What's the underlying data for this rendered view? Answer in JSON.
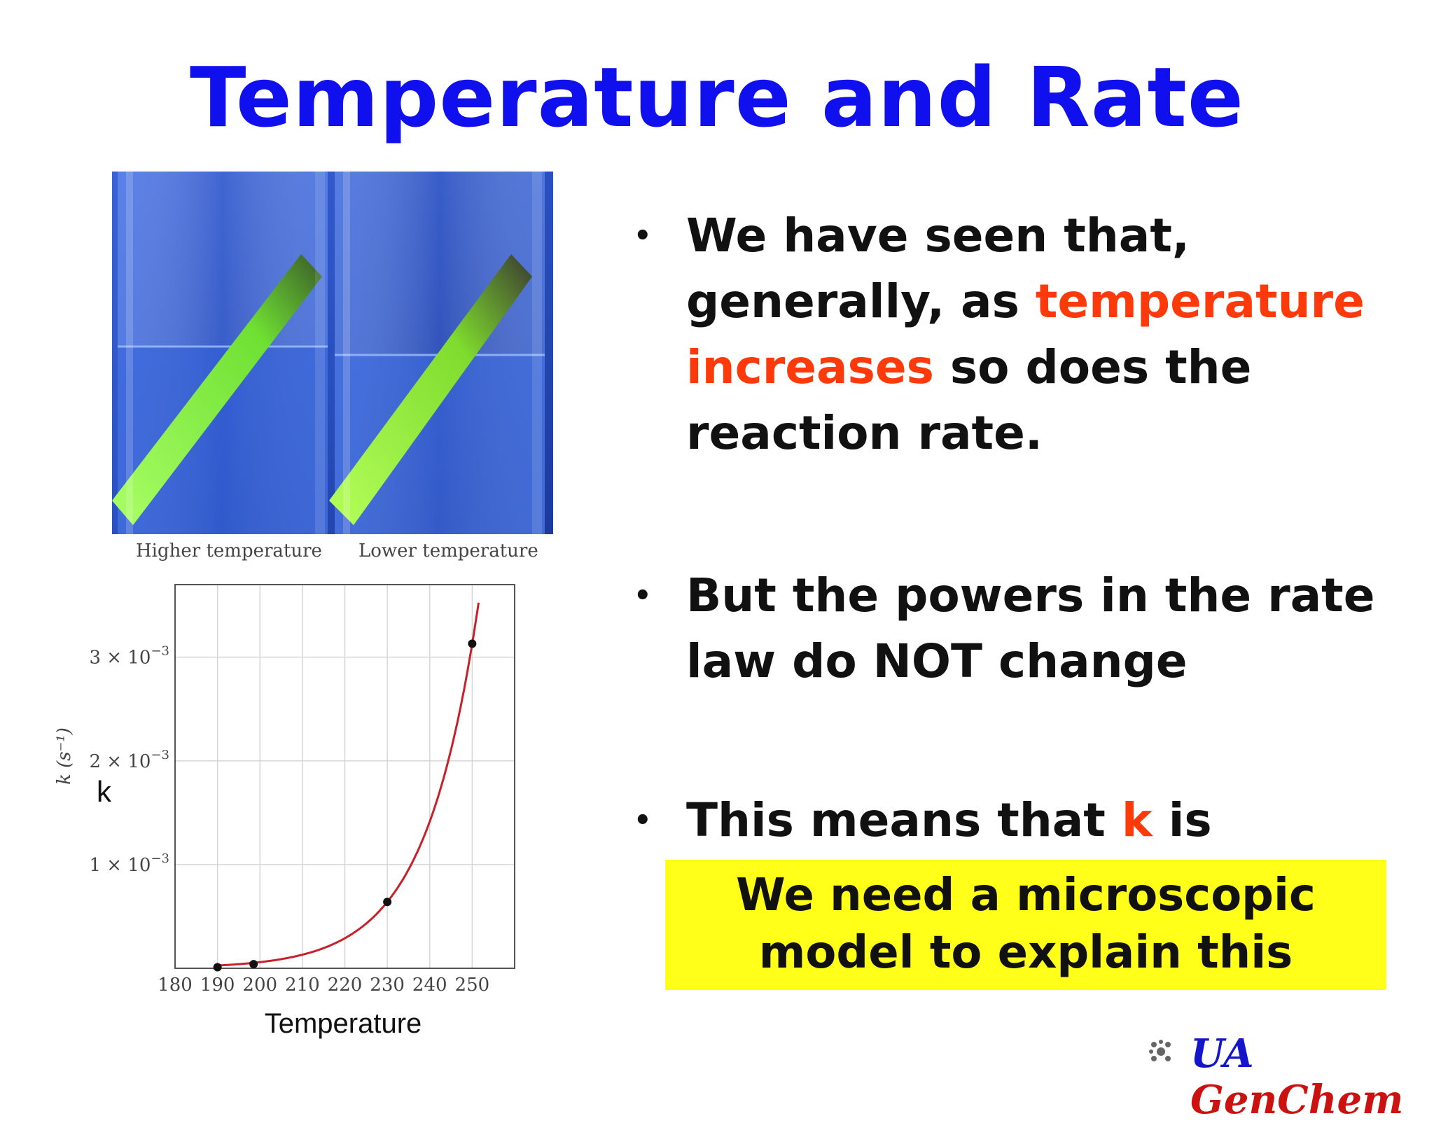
{
  "slide": {
    "title": "Temperature and Rate",
    "photo": {
      "caption_left": "Higher temperature",
      "caption_right": "Lower temperature"
    },
    "bullets": [
      {
        "parts": [
          "We have seen that, generally, as ",
          "temperature increases",
          " so does the reaction rate."
        ]
      },
      {
        "parts": [
          "But the powers in the rate law do NOT change"
        ]
      },
      {
        "parts": [
          "This means that ",
          "k",
          " is"
        ]
      }
    ],
    "bullet_symbol": "•",
    "callout": "We need a microscopic model to explain this",
    "brand": {
      "ua": "UA",
      "genchem": "GenChem"
    }
  },
  "chart_data": {
    "type": "line",
    "xlabel": "Temperature",
    "ylabel": "k (s⁻¹)",
    "ylabel_annotation": "k",
    "xlim": [
      180,
      260
    ],
    "ylim": [
      0,
      0.0037
    ],
    "x_ticks": [
      180,
      190,
      200,
      210,
      220,
      230,
      240,
      250
    ],
    "y_ticks": [
      {
        "value": 0.001,
        "label_base": "1 × 10",
        "label_exp": "−3"
      },
      {
        "value": 0.002,
        "label_base": "2 × 10",
        "label_exp": "−3"
      },
      {
        "value": 0.003,
        "label_base": "3 × 10",
        "label_exp": "−3"
      }
    ],
    "grid": true,
    "series": [
      {
        "points": [
          {
            "x": 190,
            "y": 1e-05
          },
          {
            "x": 198.5,
            "y": 4e-05
          },
          {
            "x": 230,
            "y": 0.00064
          },
          {
            "x": 250,
            "y": 0.00313
          }
        ]
      }
    ],
    "curve_color": "#c8202a",
    "point_color": "#111111"
  },
  "colors": {
    "title": "#1010ee",
    "highlight": "#ff3a0a",
    "callout_bg": "#ffff1a"
  }
}
